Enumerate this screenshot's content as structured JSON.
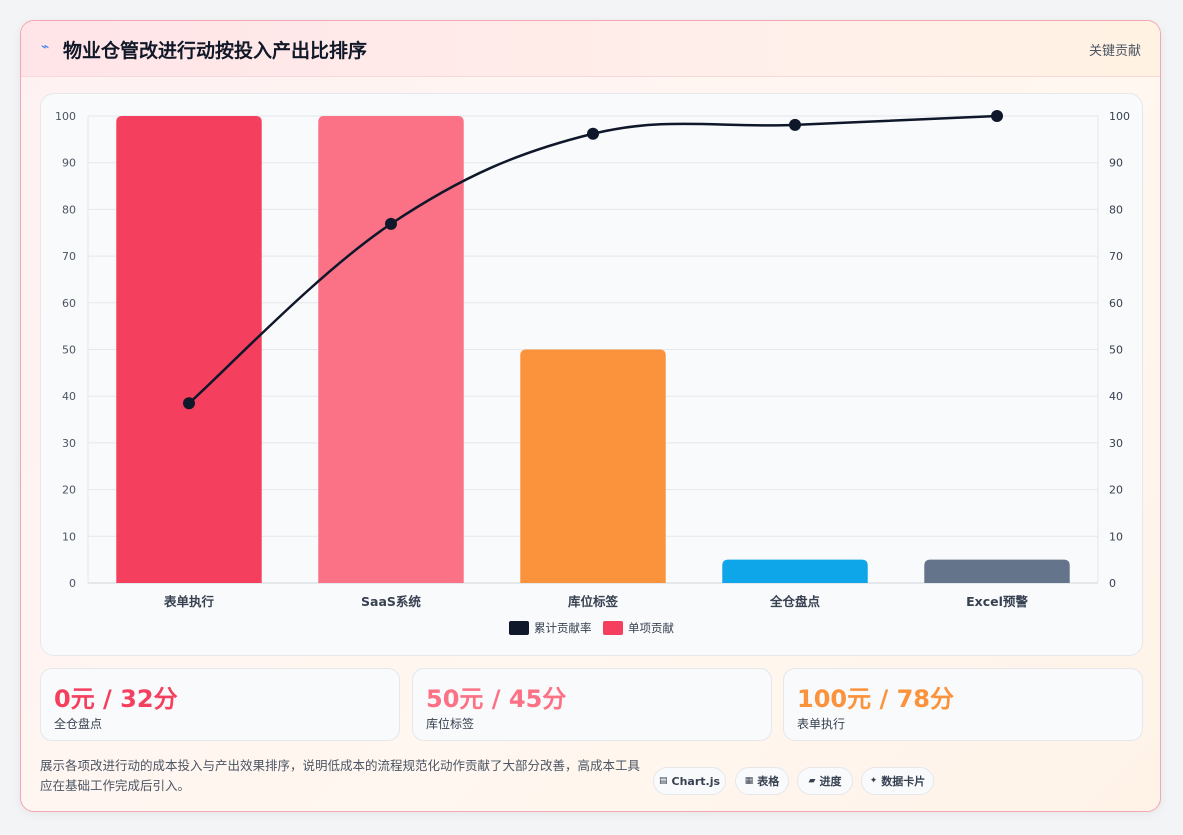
{
  "header": {
    "icon": "lightning-icon",
    "title": "物业仓管改进行动按投入产出比排序",
    "tag": "关键贡献"
  },
  "colors": {
    "line": "#0f172a",
    "bar_colors": [
      "#f43f5e",
      "#fb7185",
      "#fb923c",
      "#0ea5e9",
      "#64748b"
    ]
  },
  "chart_data": {
    "type": "bar",
    "categories": [
      "表单执行",
      "SaaS系统",
      "库位标签",
      "全仓盘点",
      "Excel预警"
    ],
    "series": [
      {
        "name": "累计贡献率",
        "type": "line",
        "axis": "right",
        "values": [
          38.5,
          76.9,
          96.2,
          98.1,
          100
        ]
      },
      {
        "name": "单项贡献",
        "type": "bar",
        "axis": "left",
        "values": [
          100,
          100,
          50,
          5,
          5
        ]
      }
    ],
    "ylim": [
      0,
      100
    ],
    "y2lim": [
      0,
      100
    ],
    "yticks": [
      0,
      10,
      20,
      30,
      40,
      50,
      60,
      70,
      80,
      90,
      100
    ],
    "grid": true,
    "legend": "bottom"
  },
  "kpis": [
    {
      "value": "0元 / 32分",
      "label": "全仓盘点",
      "color": "#f43f5e"
    },
    {
      "value": "50元 / 45分",
      "label": "库位标签",
      "color": "#fb7185"
    },
    {
      "value": "100元 / 78分",
      "label": "表单执行",
      "color": "#fb923c"
    }
  ],
  "description": "展示各项改进行动的成本投入与产出效果排序，说明低成本的流程规范化动作贡献了大部分改善，高成本工具应在基础工作完成后引入。",
  "tools": [
    {
      "icon": "table-icon",
      "label": "Chart.js"
    },
    {
      "icon": "grid-icon",
      "label": "表格"
    },
    {
      "icon": "progress-icon",
      "label": "进度"
    },
    {
      "icon": "sparkle-icon",
      "label": "数据卡片"
    }
  ]
}
